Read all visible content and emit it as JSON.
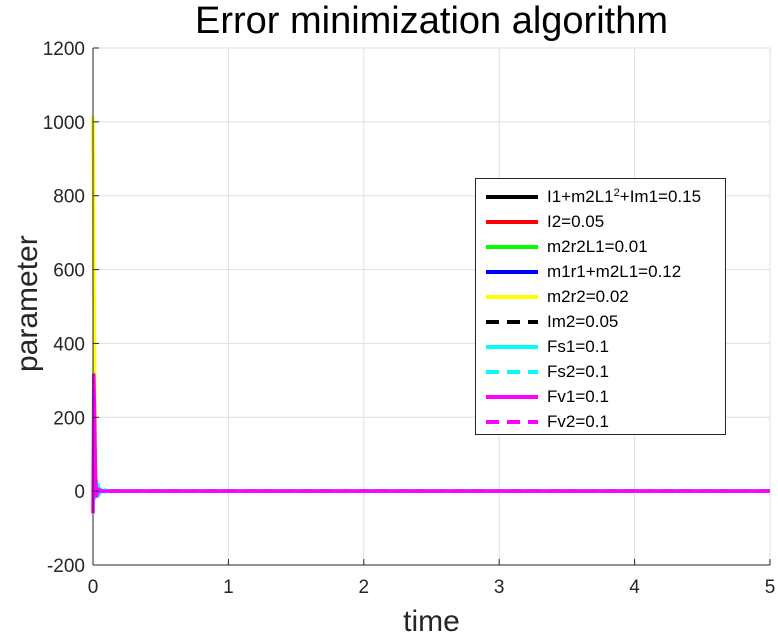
{
  "chart_data": {
    "type": "line",
    "title": "Error minimization algorithm",
    "xlabel": "time",
    "ylabel": "parameter",
    "xlim": [
      0,
      5
    ],
    "ylim": [
      -200,
      1200
    ],
    "xticks": [
      0,
      1,
      2,
      3,
      4,
      5
    ],
    "yticks": [
      -200,
      0,
      200,
      400,
      600,
      800,
      1000,
      1200
    ],
    "grid": true,
    "legend_position": "right",
    "series": [
      {
        "name": "I1+m2L1²+Im1=0.15",
        "label_main": "I1+m2L1",
        "label_sup": "2",
        "label_tail": "+Im1=0.15",
        "color": "#000000",
        "style": "solid",
        "x": [
          0,
          0.01,
          0.03,
          0.08,
          5
        ],
        "y": [
          0,
          1,
          0.5,
          0.15,
          0.15
        ]
      },
      {
        "name": "I2=0.05",
        "color": "#ff0000",
        "style": "solid",
        "x": [
          0,
          0.01,
          0.03,
          0.08,
          5
        ],
        "y": [
          0,
          2,
          0.4,
          0.05,
          0.05
        ]
      },
      {
        "name": "m2r2L1=0.01",
        "color": "#00ff00",
        "style": "solid",
        "x": [
          0,
          0.01,
          0.03,
          0.08,
          5
        ],
        "y": [
          0,
          1.5,
          0.3,
          0.01,
          0.01
        ]
      },
      {
        "name": "m1r1+m2L1=0.12",
        "color": "#0000ff",
        "style": "solid",
        "x": [
          0,
          0.01,
          0.03,
          0.08,
          5
        ],
        "y": [
          0,
          2,
          0.5,
          0.12,
          0.12
        ]
      },
      {
        "name": "m2r2=0.02",
        "color": "#ffff00",
        "style": "solid",
        "x": [
          0,
          0.005,
          0.012,
          0.02,
          0.05,
          5
        ],
        "y": [
          1015,
          700,
          330,
          0,
          0.02,
          0.02
        ]
      },
      {
        "name": "Im2=0.05",
        "color": "#000000",
        "style": "dashed",
        "x": [
          0,
          0.01,
          0.03,
          0.08,
          5
        ],
        "y": [
          0,
          1,
          0.3,
          0.05,
          0.05
        ]
      },
      {
        "name": "Fs1=0.1",
        "color": "#00ffff",
        "style": "solid",
        "x": [
          0,
          0.01,
          0.025,
          0.04,
          0.06,
          0.08,
          0.1,
          5
        ],
        "y": [
          0,
          -20,
          25,
          -12,
          5,
          -2,
          0.1,
          0.1
        ]
      },
      {
        "name": "Fs2=0.1",
        "color": "#00ffff",
        "style": "dashed",
        "x": [
          0,
          0.015,
          0.03,
          0.05,
          0.07,
          0.09,
          0.12,
          5
        ],
        "y": [
          0,
          20,
          35,
          -10,
          -15,
          3,
          0.1,
          0.1
        ]
      },
      {
        "name": "Fv1=0.1",
        "color": "#ff00ff",
        "style": "solid",
        "x": [
          0,
          0.006,
          0.012,
          0.018,
          0.025,
          0.035,
          0.05,
          0.08,
          5
        ],
        "y": [
          -60,
          315,
          200,
          50,
          -10,
          5,
          0,
          0.1,
          0.1
        ]
      },
      {
        "name": "Fv2=0.1",
        "color": "#ff00ff",
        "style": "dashed",
        "x": [
          0,
          0.01,
          0.02,
          0.04,
          0.06,
          5
        ],
        "y": [
          0,
          40,
          -20,
          5,
          0.1,
          0.1
        ]
      }
    ]
  }
}
